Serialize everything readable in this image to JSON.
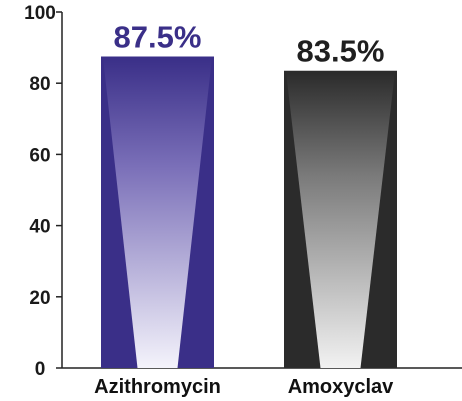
{
  "chart_data": {
    "type": "bar",
    "categories": [
      "Azithromycin",
      "Amoxyclav"
    ],
    "values": [
      87.5,
      83.5
    ],
    "data_labels": [
      "87.5%",
      "83.5%"
    ],
    "ylim": [
      0,
      100
    ],
    "yticks": [
      "0",
      "20",
      "40",
      "60",
      "80",
      "100"
    ],
    "grid": false,
    "legend": "none",
    "colors": {
      "bar_1": "#3a2f88",
      "bar_1_label": "#3a2f88",
      "bar_2": "#2b2b2b",
      "bar_2_label": "#1f1f1f",
      "axis": "#222222"
    }
  }
}
